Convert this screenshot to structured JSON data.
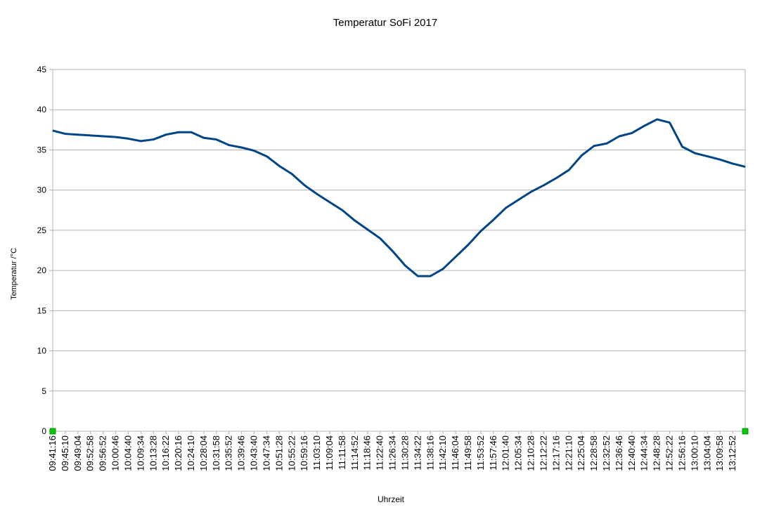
{
  "chart_data": {
    "type": "line",
    "title": "Temperatur SoFi 2017",
    "x_label": "Uhrzeit",
    "y_label": "Temperatur /°C",
    "categories": [
      "09:41:16",
      "09:45:10",
      "09:49:04",
      "09:52:58",
      "09:56:52",
      "10:00:46",
      "10:04:40",
      "10:09:34",
      "10:13:28",
      "10:16:22",
      "10:20:16",
      "10:24:10",
      "10:28:04",
      "10:31:58",
      "10:35:52",
      "10:39:46",
      "10:43:40",
      "10:47:34",
      "10:51:28",
      "10:55:22",
      "10:59:16",
      "11:03:10",
      "11:09:04",
      "11:11:58",
      "11:14:52",
      "11:18:46",
      "11:22:40",
      "11:26:34",
      "11:30:28",
      "11:34:22",
      "11:38:16",
      "11:42:10",
      "11:46:04",
      "11:49:58",
      "11:53:52",
      "11:57:46",
      "12:01:40",
      "12:05:34",
      "12:10:28",
      "12:12:22",
      "12:17:16",
      "12:21:10",
      "12:25:04",
      "12:28:58",
      "12:32:52",
      "12:36:46",
      "12:40:40",
      "12:44:34",
      "12:48:28",
      "12:52:22",
      "12:56:16",
      "13:00:10",
      "13:04:04",
      "13:09:58",
      "13:12:52",
      null
    ],
    "series": [
      {
        "name": "Temperatur",
        "color": "#004586",
        "marker_color": "#00cc00",
        "values": [
          37.4,
          37.0,
          36.9,
          36.8,
          36.7,
          36.6,
          36.4,
          36.1,
          36.3,
          36.9,
          37.2,
          37.2,
          36.5,
          36.3,
          35.6,
          35.3,
          34.9,
          34.2,
          33.0,
          32.0,
          30.6,
          29.5,
          28.5,
          27.5,
          26.2,
          25.1,
          24.0,
          22.4,
          20.6,
          19.3,
          19.3,
          20.2,
          21.7,
          23.2,
          24.9,
          26.3,
          27.8,
          28.8,
          29.8,
          30.6,
          31.5,
          32.5,
          34.3,
          35.5,
          35.8,
          36.7,
          37.1,
          38.0,
          38.8,
          38.4,
          35.4,
          34.6,
          34.2,
          33.8,
          33.3,
          32.9
        ]
      }
    ],
    "ylim": [
      0,
      45
    ],
    "yticks": [
      0,
      5,
      10,
      15,
      20,
      25,
      30,
      35,
      40,
      45
    ],
    "grid": true
  }
}
